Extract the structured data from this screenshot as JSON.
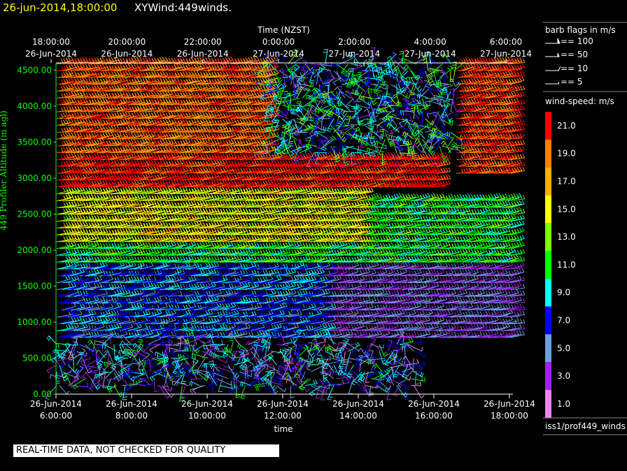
{
  "header": {
    "date_time": "26-jun-2014,18:00:00",
    "product": "XYWind:449winds."
  },
  "chart_data": {
    "type": "wind-barb time-height plot",
    "top_axis_title": "Time (NZST)",
    "top_ticks": [
      {
        "time": "18:00:00",
        "date": "26-Jun-2014"
      },
      {
        "time": "20:00:00",
        "date": "26-Jun-2014"
      },
      {
        "time": "22:00:00",
        "date": "26-Jun-2014"
      },
      {
        "time": "0:00:00",
        "date": "27-Jun-2014"
      },
      {
        "time": "2:00:00",
        "date": "27-Jun-2014"
      },
      {
        "time": "4:00:00",
        "date": "27-Jun-2014"
      },
      {
        "time": "6:00:00",
        "date": "27-Jun-2014"
      }
    ],
    "bottom_ticks": [
      {
        "date": "26-Jun-2014",
        "time": "6:00:00"
      },
      {
        "date": "26-Jun-2014",
        "time": "8:00:00"
      },
      {
        "date": "26-Jun-2014",
        "time": "10:00:00"
      },
      {
        "date": "26-Jun-2014",
        "time": "12:00:00"
      },
      {
        "date": "26-Jun-2014",
        "time": "14:00:00"
      },
      {
        "date": "26-Jun-2014",
        "time": "16:00:00"
      },
      {
        "date": "26-Jun-2014",
        "time": "18:00:00"
      }
    ],
    "xlabel": "time",
    "xlim_hours_utc": [
      6,
      18
    ],
    "ylabel": "449 Profiler Altitude (m agl)",
    "ylim": [
      0,
      4600
    ],
    "y_ticks": [
      "0.00",
      "500.00",
      "1000.00",
      "1500.00",
      "2000.00",
      "2500.00",
      "3000.00",
      "3500.00",
      "4000.00",
      "4500.00"
    ],
    "y_tick_values": [
      0,
      500,
      1000,
      1500,
      2000,
      2500,
      3000,
      3500,
      4000,
      4500
    ],
    "speed_regimes": [
      {
        "hours": [
          6,
          15.5
        ],
        "alt": [
          0,
          700
        ],
        "speed": 6,
        "note": "scattered"
      },
      {
        "hours": [
          6,
          13
        ],
        "alt": [
          700,
          1800
        ],
        "speed": 7
      },
      {
        "hours": [
          13,
          18
        ],
        "alt": [
          700,
          1800
        ],
        "speed": 4
      },
      {
        "hours": [
          6,
          14
        ],
        "alt": [
          1800,
          2100
        ],
        "speed": 11
      },
      {
        "hours": [
          14,
          18
        ],
        "alt": [
          1800,
          2700
        ],
        "speed": 11
      },
      {
        "hours": [
          6,
          14
        ],
        "alt": [
          2100,
          2800
        ],
        "speed": 15
      },
      {
        "hours": [
          6,
          16
        ],
        "alt": [
          2800,
          3300
        ],
        "speed": 21
      },
      {
        "hours": [
          6,
          11.5
        ],
        "alt": [
          3300,
          4600
        ],
        "speed": 19
      },
      {
        "hours": [
          11.5,
          16.5
        ],
        "alt": [
          3300,
          4600
        ],
        "speed": 8,
        "note": "scattered"
      },
      {
        "hours": [
          16.5,
          18
        ],
        "alt": [
          3000,
          4600
        ],
        "speed": 20
      }
    ]
  },
  "legend": {
    "barb_title": "barb flags in m/s",
    "barb_items": [
      "== 100",
      "== 50",
      "== 10",
      "== 5"
    ],
    "speed_title": "wind-speed: m/s",
    "speed_bins": [
      {
        "label": "21.0",
        "color": "#ff0000"
      },
      {
        "label": "19.0",
        "color": "#ff8000"
      },
      {
        "label": "17.0",
        "color": "#ffb000"
      },
      {
        "label": "15.0",
        "color": "#ffff00"
      },
      {
        "label": "13.0",
        "color": "#80ff00"
      },
      {
        "label": "11.0",
        "color": "#00ff00"
      },
      {
        "label": "9.0",
        "color": "#00ffff"
      },
      {
        "label": "7.0",
        "color": "#0000ff"
      },
      {
        "label": "5.0",
        "color": "#6ca0dc"
      },
      {
        "label": "3.0",
        "color": "#a020f0"
      },
      {
        "label": "1.0",
        "color": "#ee82ee"
      }
    ],
    "source": "iss1/prof449_winds"
  },
  "footer": {
    "qc_note": "REAL-TIME DATA, NOT CHECKED FOR QUALITY"
  }
}
